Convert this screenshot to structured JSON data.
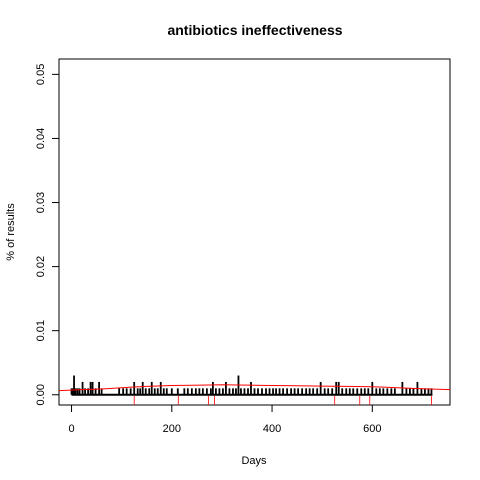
{
  "chart_data": {
    "type": "bar",
    "title": "antibiotics ineffectiveness",
    "xlabel": "Days",
    "ylabel": "% of results",
    "xlim": [
      -25,
      755
    ],
    "ylim": [
      -0.0016,
      0.0524
    ],
    "xticks": [
      0,
      200,
      400,
      600
    ],
    "xtick_labels": [
      "0",
      "200",
      "400",
      "600"
    ],
    "yticks": [
      0.0,
      0.01,
      0.02,
      0.03,
      0.04,
      0.05
    ],
    "ytick_labels": [
      "0.00",
      "0.01",
      "0.02",
      "0.03",
      "0.04",
      "0.05"
    ],
    "grid": false,
    "bar_color": "#000000",
    "smooth_color": "#ff0000",
    "rug_color": "#ff0000",
    "bars": [
      {
        "x": 0,
        "y": 0.001
      },
      {
        "x": 3,
        "y": 0.001
      },
      {
        "x": 5,
        "y": 0.003
      },
      {
        "x": 8,
        "y": 0.001
      },
      {
        "x": 12,
        "y": 0.001
      },
      {
        "x": 16,
        "y": 0.001
      },
      {
        "x": 22,
        "y": 0.002
      },
      {
        "x": 27,
        "y": 0.001
      },
      {
        "x": 33,
        "y": 0.001
      },
      {
        "x": 38,
        "y": 0.002
      },
      {
        "x": 42,
        "y": 0.002
      },
      {
        "x": 48,
        "y": 0.001
      },
      {
        "x": 55,
        "y": 0.002
      },
      {
        "x": 60,
        "y": 0.001
      },
      {
        "x": 95,
        "y": 0.001
      },
      {
        "x": 103,
        "y": 0.001
      },
      {
        "x": 110,
        "y": 0.001
      },
      {
        "x": 118,
        "y": 0.001
      },
      {
        "x": 125,
        "y": 0.002
      },
      {
        "x": 132,
        "y": 0.001
      },
      {
        "x": 137,
        "y": 0.001
      },
      {
        "x": 142,
        "y": 0.002
      },
      {
        "x": 148,
        "y": 0.001
      },
      {
        "x": 155,
        "y": 0.001
      },
      {
        "x": 160,
        "y": 0.002
      },
      {
        "x": 166,
        "y": 0.001
      },
      {
        "x": 172,
        "y": 0.001
      },
      {
        "x": 178,
        "y": 0.002
      },
      {
        "x": 184,
        "y": 0.001
      },
      {
        "x": 190,
        "y": 0.001
      },
      {
        "x": 200,
        "y": 0.001
      },
      {
        "x": 212,
        "y": 0.001
      },
      {
        "x": 225,
        "y": 0.001
      },
      {
        "x": 232,
        "y": 0.001
      },
      {
        "x": 240,
        "y": 0.001
      },
      {
        "x": 248,
        "y": 0.001
      },
      {
        "x": 255,
        "y": 0.001
      },
      {
        "x": 262,
        "y": 0.001
      },
      {
        "x": 270,
        "y": 0.001
      },
      {
        "x": 278,
        "y": 0.001
      },
      {
        "x": 282,
        "y": 0.002
      },
      {
        "x": 288,
        "y": 0.001
      },
      {
        "x": 295,
        "y": 0.001
      },
      {
        "x": 302,
        "y": 0.001
      },
      {
        "x": 308,
        "y": 0.002
      },
      {
        "x": 315,
        "y": 0.001
      },
      {
        "x": 322,
        "y": 0.001
      },
      {
        "x": 328,
        "y": 0.001
      },
      {
        "x": 333,
        "y": 0.003
      },
      {
        "x": 338,
        "y": 0.001
      },
      {
        "x": 345,
        "y": 0.001
      },
      {
        "x": 352,
        "y": 0.001
      },
      {
        "x": 358,
        "y": 0.002
      },
      {
        "x": 365,
        "y": 0.001
      },
      {
        "x": 372,
        "y": 0.001
      },
      {
        "x": 380,
        "y": 0.001
      },
      {
        "x": 388,
        "y": 0.001
      },
      {
        "x": 395,
        "y": 0.001
      },
      {
        "x": 402,
        "y": 0.001
      },
      {
        "x": 408,
        "y": 0.001
      },
      {
        "x": 415,
        "y": 0.001
      },
      {
        "x": 422,
        "y": 0.001
      },
      {
        "x": 430,
        "y": 0.001
      },
      {
        "x": 438,
        "y": 0.001
      },
      {
        "x": 445,
        "y": 0.001
      },
      {
        "x": 452,
        "y": 0.001
      },
      {
        "x": 460,
        "y": 0.001
      },
      {
        "x": 468,
        "y": 0.001
      },
      {
        "x": 475,
        "y": 0.001
      },
      {
        "x": 482,
        "y": 0.001
      },
      {
        "x": 490,
        "y": 0.001
      },
      {
        "x": 497,
        "y": 0.002
      },
      {
        "x": 505,
        "y": 0.001
      },
      {
        "x": 512,
        "y": 0.001
      },
      {
        "x": 520,
        "y": 0.001
      },
      {
        "x": 528,
        "y": 0.002
      },
      {
        "x": 533,
        "y": 0.002
      },
      {
        "x": 540,
        "y": 0.001
      },
      {
        "x": 548,
        "y": 0.001
      },
      {
        "x": 555,
        "y": 0.001
      },
      {
        "x": 562,
        "y": 0.001
      },
      {
        "x": 570,
        "y": 0.001
      },
      {
        "x": 578,
        "y": 0.001
      },
      {
        "x": 585,
        "y": 0.001
      },
      {
        "x": 592,
        "y": 0.001
      },
      {
        "x": 600,
        "y": 0.002
      },
      {
        "x": 608,
        "y": 0.001
      },
      {
        "x": 615,
        "y": 0.001
      },
      {
        "x": 622,
        "y": 0.001
      },
      {
        "x": 630,
        "y": 0.001
      },
      {
        "x": 638,
        "y": 0.001
      },
      {
        "x": 645,
        "y": 0.001
      },
      {
        "x": 660,
        "y": 0.002
      },
      {
        "x": 668,
        "y": 0.001
      },
      {
        "x": 675,
        "y": 0.001
      },
      {
        "x": 682,
        "y": 0.001
      },
      {
        "x": 690,
        "y": 0.002
      },
      {
        "x": 698,
        "y": 0.001
      },
      {
        "x": 705,
        "y": 0.001
      },
      {
        "x": 712,
        "y": 0.001
      },
      {
        "x": 718,
        "y": 0.001
      }
    ],
    "smooth_line": [
      {
        "x": -25,
        "y": 0.00065
      },
      {
        "x": 20,
        "y": 0.0008
      },
      {
        "x": 60,
        "y": 0.0009
      },
      {
        "x": 100,
        "y": 0.0011
      },
      {
        "x": 150,
        "y": 0.0013
      },
      {
        "x": 200,
        "y": 0.00145
      },
      {
        "x": 260,
        "y": 0.0015
      },
      {
        "x": 300,
        "y": 0.00155
      },
      {
        "x": 350,
        "y": 0.0015
      },
      {
        "x": 400,
        "y": 0.00145
      },
      {
        "x": 450,
        "y": 0.0014
      },
      {
        "x": 500,
        "y": 0.00135
      },
      {
        "x": 550,
        "y": 0.0013
      },
      {
        "x": 600,
        "y": 0.00125
      },
      {
        "x": 650,
        "y": 0.0011
      },
      {
        "x": 700,
        "y": 0.00095
      },
      {
        "x": 755,
        "y": 0.0008
      }
    ],
    "rug": [
      125,
      213,
      273,
      285,
      525,
      575,
      595,
      718
    ]
  }
}
